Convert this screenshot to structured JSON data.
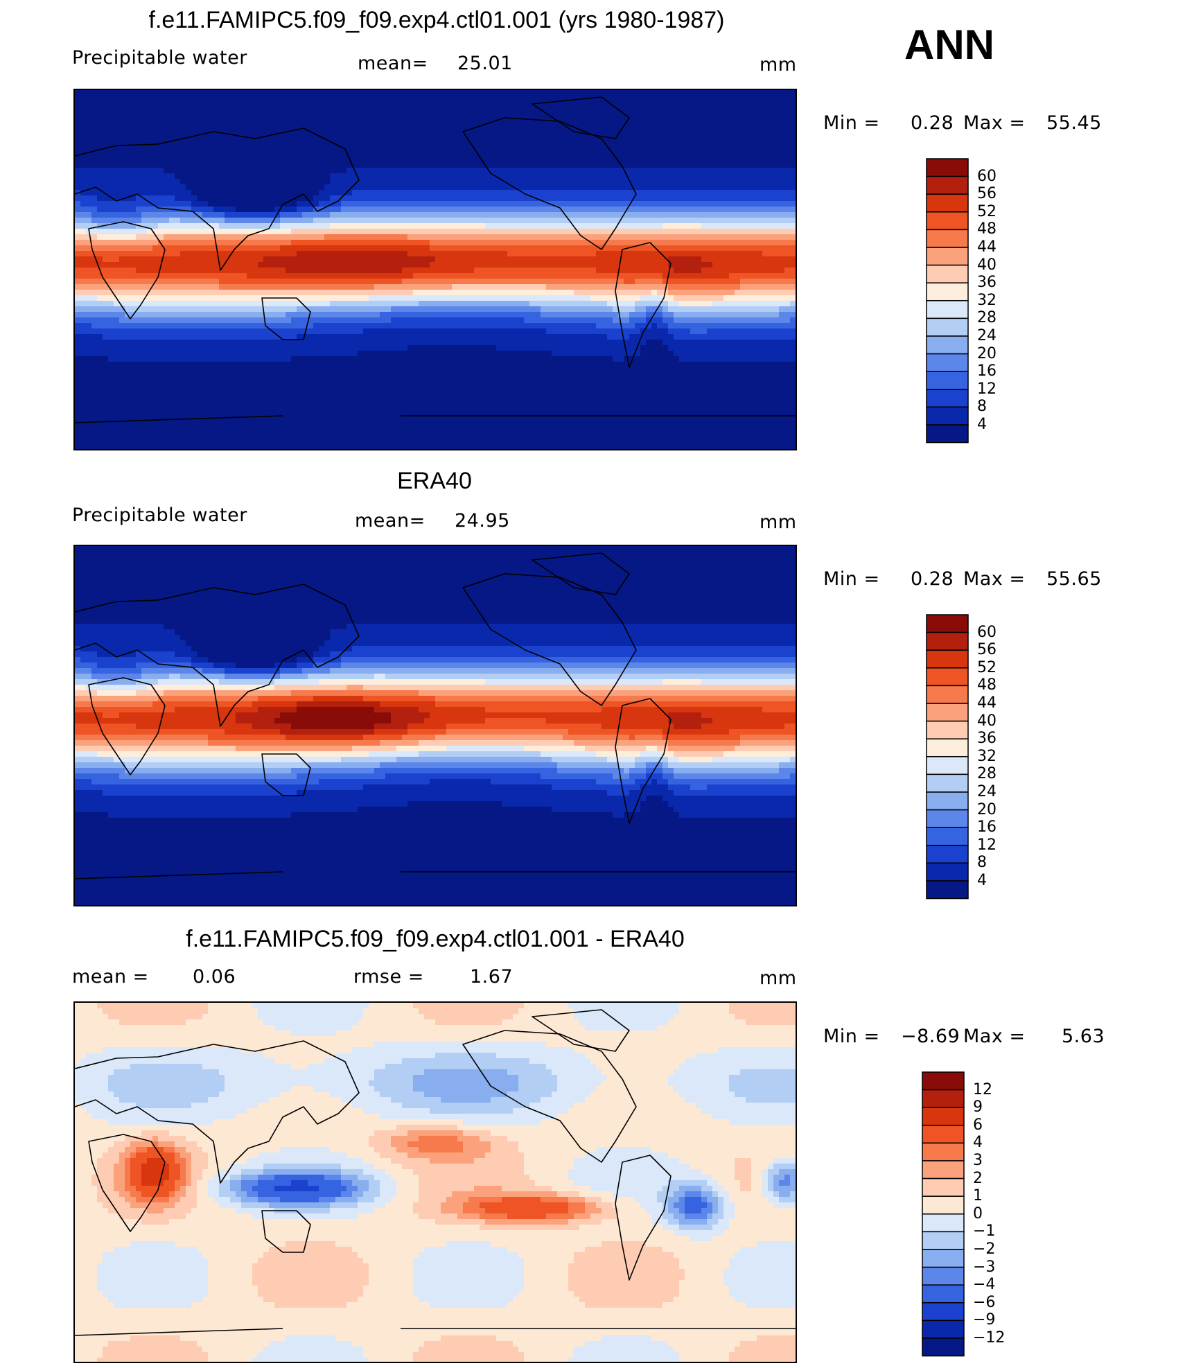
{
  "season": "ANN",
  "panels": [
    {
      "title": "f.e11.FAMIPC5.f09_f09.exp4.ctl01.001 (yrs 1980-1987)",
      "left_text": "Precipitable  water",
      "center_label": "mean=",
      "center_value": "25.01",
      "units": "mm",
      "min_label": "Min  =",
      "min_value": "0.28",
      "max_label": "Max  =",
      "max_value": "55.45",
      "levels": [
        "60",
        "56",
        "52",
        "48",
        "44",
        "40",
        "36",
        "32",
        "28",
        "24",
        "20",
        "16",
        "12",
        "8",
        "4"
      ],
      "colors": [
        "#8a0c08",
        "#b4200e",
        "#d8360e",
        "#ee5424",
        "#f67a4c",
        "#fba27c",
        "#fdccb2",
        "#fdeedc",
        "#dae8fa",
        "#b2cef4",
        "#88aef0",
        "#5c86ea",
        "#3664e0",
        "#1a42ce",
        "#0a28ac",
        "#051886"
      ],
      "field": "model"
    },
    {
      "title": "ERA40",
      "left_text": "Precipitable  water",
      "center_label": "mean=",
      "center_value": "24.95",
      "units": "mm",
      "min_label": "Min  =",
      "min_value": "0.28",
      "max_label": "Max  =",
      "max_value": "55.65",
      "levels": [
        "60",
        "56",
        "52",
        "48",
        "44",
        "40",
        "36",
        "32",
        "28",
        "24",
        "20",
        "16",
        "12",
        "8",
        "4"
      ],
      "colors": [
        "#8a0c08",
        "#b4200e",
        "#d8360e",
        "#ee5424",
        "#f67a4c",
        "#fba27c",
        "#fdccb2",
        "#fdeedc",
        "#dae8fa",
        "#b2cef4",
        "#88aef0",
        "#5c86ea",
        "#3664e0",
        "#1a42ce",
        "#0a28ac",
        "#051886"
      ],
      "field": "obs"
    },
    {
      "title": "f.e11.FAMIPC5.f09_f09.exp4.ctl01.001 - ERA40",
      "left_text": "mean  =",
      "left_value": "0.06",
      "center_label": "rmse  =",
      "center_value": "1.67",
      "units": "mm",
      "min_label": "Min  =",
      "min_value": "−8.69",
      "max_label": "Max  =",
      "max_value": "5.63",
      "levels": [
        "12",
        "9",
        "6",
        "4",
        "3",
        "2",
        "1",
        "0",
        "−1",
        "−2",
        "−3",
        "−4",
        "−6",
        "−9",
        "−12"
      ],
      "colors": [
        "#8a0c08",
        "#b4200e",
        "#d8360e",
        "#ee5424",
        "#f67a4c",
        "#fba27c",
        "#fdccb2",
        "#fde8d4",
        "#dae8fa",
        "#b2cef4",
        "#88aef0",
        "#5c86ea",
        "#3664e0",
        "#1a42ce",
        "#0a28ac",
        "#051886"
      ],
      "field": "diff"
    }
  ]
}
